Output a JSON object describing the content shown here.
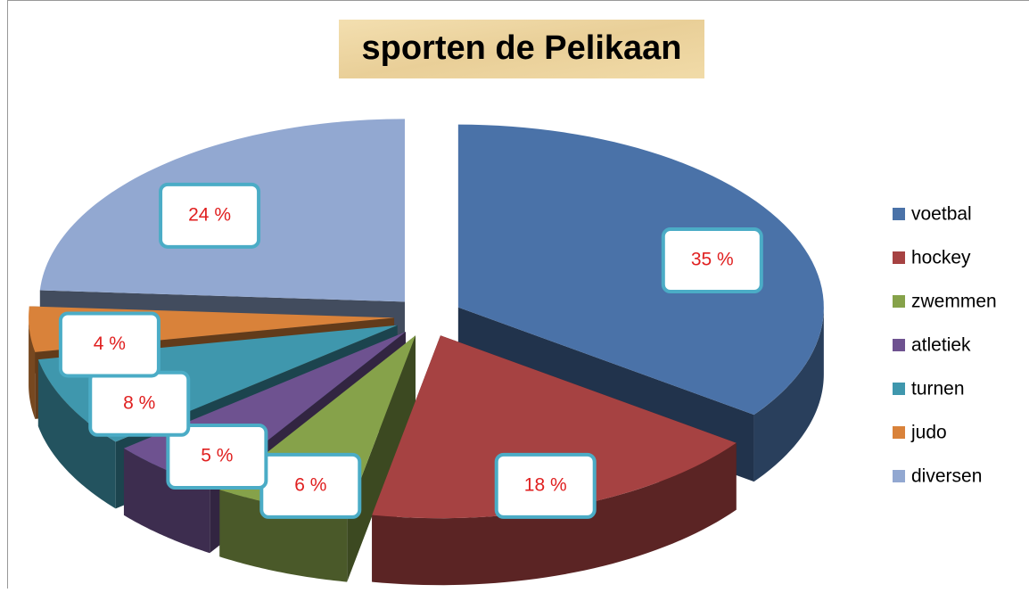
{
  "chart_data": {
    "type": "pie",
    "title": "sporten de Pelikaan",
    "categories": [
      "voetbal",
      "hockey",
      "zwemmen",
      "atletiek",
      "turnen",
      "judo",
      "diversen"
    ],
    "values": [
      35,
      18,
      6,
      5,
      8,
      4,
      24
    ],
    "value_labels": [
      "35 %",
      "18 %",
      "6 %",
      "5 %",
      "8 %",
      "4 %",
      "24 %"
    ],
    "colors": [
      "#4a72a8",
      "#a64242",
      "#86a24a",
      "#6e5290",
      "#3f97ad",
      "#d9823a",
      "#92a8d1"
    ],
    "legend": "right"
  }
}
